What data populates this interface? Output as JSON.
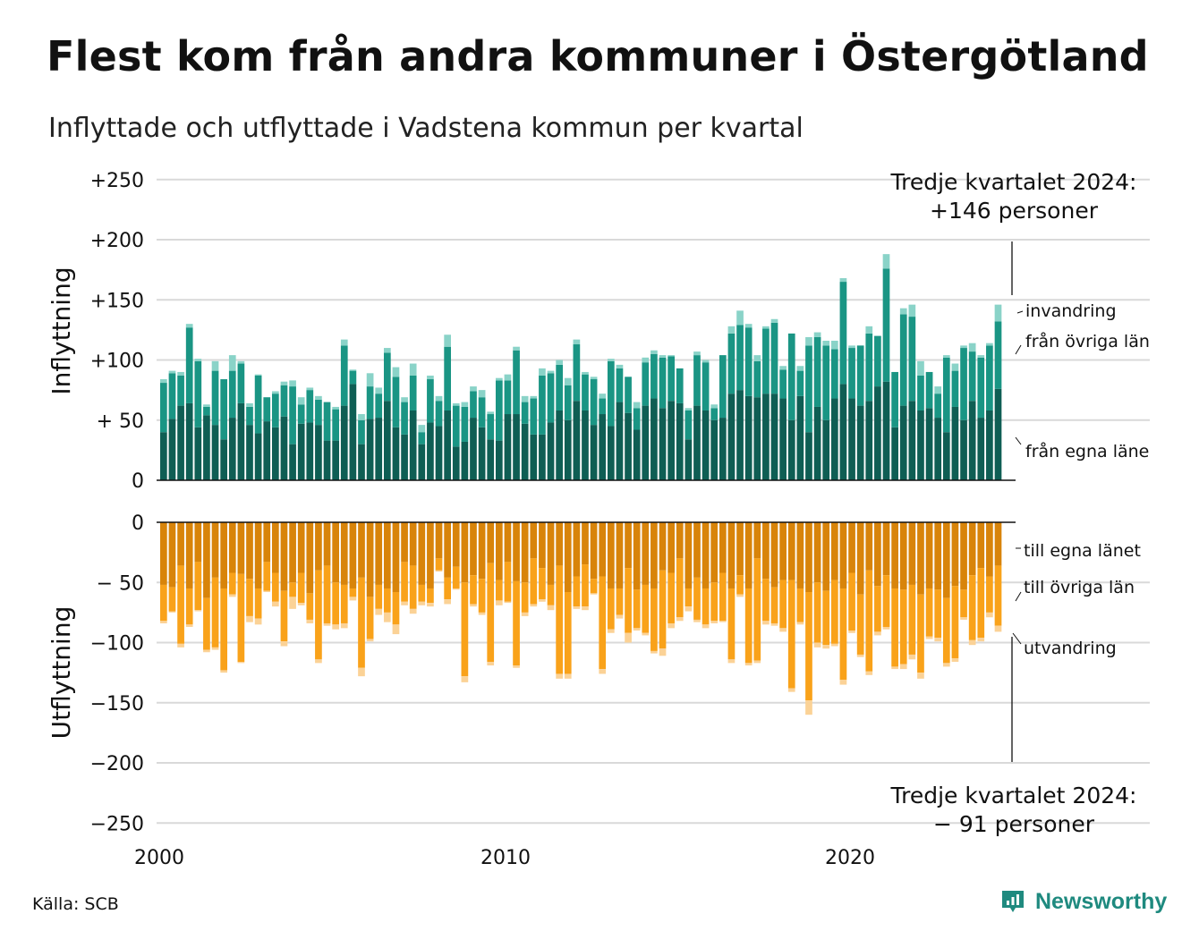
{
  "title": "Flest kom från andra kommuner i Östergötland",
  "subtitle": "Inflyttade och utflyttade i Vadstena kommun per kvartal",
  "source": "Källa: SCB",
  "brand": "Newsworthy",
  "colors": {
    "in_own": "#0f5e54",
    "in_other": "#1a9584",
    "in_immig": "#8ad3c8",
    "out_own": "#d8840a",
    "out_other": "#f9a21a",
    "out_emig": "#fbd296",
    "grid": "#d9d9d9",
    "brand": "#1f8a7f"
  },
  "chart_data": {
    "type": "bar",
    "stacked": true,
    "x_start_year": 2000,
    "xticks": [
      "2000",
      "2010",
      "2020"
    ],
    "inflow": {
      "ylabel": "Inflyttning",
      "yticks": [
        "+250",
        "+200",
        "+150",
        "+100",
        "+ 50",
        "0"
      ],
      "ylim": [
        0,
        250
      ],
      "series_labels": [
        "invandring",
        "från övriga län",
        "från egna läne"
      ],
      "annotation": [
        "Tredje kvartalet 2024:",
        "+146 personer"
      ],
      "own": [
        40,
        51,
        62,
        64,
        44,
        54,
        46,
        34,
        52,
        64,
        46,
        39,
        49,
        44,
        53,
        30,
        47,
        48,
        46,
        33,
        33,
        62,
        80,
        30,
        51,
        52,
        66,
        44,
        38,
        58,
        30,
        48,
        45,
        58,
        28,
        32,
        52,
        44,
        34,
        33,
        55,
        55,
        47,
        38,
        38,
        48,
        58,
        50,
        66,
        58,
        46,
        55,
        45,
        65,
        56,
        42,
        62,
        68,
        60,
        66,
        64,
        34,
        62,
        58,
        50,
        52,
        72,
        75,
        70,
        69,
        72,
        72,
        68,
        50,
        70,
        40,
        61,
        50,
        68,
        80,
        68,
        62,
        66,
        78,
        82,
        44,
        62,
        66,
        58,
        60,
        52,
        40,
        61,
        50,
        66,
        52,
        58,
        76
      ],
      "other": [
        41,
        38,
        25,
        63,
        55,
        7,
        45,
        50,
        39,
        33,
        15,
        48,
        20,
        28,
        26,
        48,
        16,
        27,
        21,
        32,
        26,
        50,
        11,
        20,
        27,
        20,
        40,
        42,
        27,
        29,
        10,
        36,
        21,
        53,
        34,
        29,
        22,
        25,
        21,
        50,
        28,
        53,
        18,
        30,
        49,
        41,
        38,
        29,
        47,
        30,
        38,
        13,
        54,
        28,
        30,
        18,
        36,
        37,
        42,
        37,
        29,
        24,
        42,
        40,
        10,
        52,
        50,
        54,
        57,
        30,
        54,
        59,
        24,
        72,
        21,
        72,
        58,
        62,
        41,
        85,
        42,
        50,
        56,
        42,
        94,
        46,
        76,
        70,
        29,
        30,
        20,
        62,
        30,
        60,
        41,
        50,
        54,
        56
      ],
      "immig": [
        3,
        2,
        3,
        3,
        2,
        2,
        8,
        0,
        13,
        2,
        3,
        1,
        0,
        2,
        3,
        5,
        6,
        2,
        3,
        0,
        2,
        5,
        1,
        5,
        11,
        5,
        4,
        8,
        4,
        10,
        6,
        3,
        4,
        10,
        2,
        4,
        4,
        6,
        2,
        2,
        5,
        3,
        5,
        2,
        6,
        2,
        4,
        6,
        4,
        2,
        2,
        4,
        2,
        3,
        0,
        5,
        4,
        3,
        2,
        1,
        0,
        2,
        3,
        2,
        3,
        0,
        6,
        12,
        3,
        5,
        2,
        3,
        3,
        0,
        4,
        7,
        4,
        4,
        7,
        3,
        2,
        0,
        6,
        0,
        12,
        0,
        5,
        10,
        12,
        0,
        6,
        2,
        6,
        2,
        7,
        2,
        2,
        14
      ]
    },
    "outflow": {
      "ylabel": "Utflyttning",
      "yticks": [
        "0",
        "− 50",
        "−100",
        "−150",
        "−200",
        "−250"
      ],
      "ylim": [
        -250,
        0
      ],
      "series_labels": [
        "till egna länet",
        "till övriga län",
        "utvandring"
      ],
      "annotation": [
        "Tredje kvartalet 2024:",
        "− 91 personer"
      ],
      "own": [
        -52,
        -54,
        -36,
        -55,
        -33,
        -63,
        -46,
        -55,
        -42,
        -43,
        -47,
        -55,
        -33,
        -42,
        -57,
        -50,
        -42,
        -59,
        -40,
        -36,
        -50,
        -52,
        -55,
        -46,
        -62,
        -52,
        -55,
        -58,
        -33,
        -36,
        -52,
        -55,
        -30,
        -46,
        -37,
        -50,
        -44,
        -47,
        -34,
        -48,
        -33,
        -49,
        -50,
        -30,
        -38,
        -52,
        -36,
        -58,
        -45,
        -35,
        -47,
        -45,
        -55,
        -55,
        -38,
        -56,
        -52,
        -55,
        -40,
        -42,
        -30,
        -55,
        -46,
        -55,
        -50,
        -42,
        -55,
        -44,
        -55,
        -30,
        -47,
        -54,
        -48,
        -48,
        -55,
        -58,
        -50,
        -57,
        -48,
        -55,
        -42,
        -60,
        -40,
        -53,
        -44,
        -55,
        -56,
        -52,
        -60,
        -55,
        -56,
        -63,
        -53,
        -56,
        -44,
        -38,
        -45,
        -36
      ],
      "other": [
        -30,
        -20,
        -65,
        -30,
        -40,
        -43,
        -58,
        -68,
        -18,
        -73,
        -31,
        -25,
        -24,
        -24,
        -42,
        -12,
        -25,
        -22,
        -74,
        -48,
        -35,
        -32,
        -7,
        -75,
        -35,
        -20,
        -20,
        -27,
        -33,
        -36,
        -14,
        -12,
        -10,
        -18,
        -18,
        -78,
        -24,
        -28,
        -82,
        -17,
        -33,
        -70,
        -25,
        -38,
        -26,
        -17,
        -90,
        -68,
        -25,
        -35,
        -12,
        -77,
        -34,
        -22,
        -54,
        -32,
        -40,
        -52,
        -65,
        -42,
        -49,
        -15,
        -35,
        -30,
        -32,
        -40,
        -59,
        -16,
        -62,
        -85,
        -35,
        -30,
        -40,
        -90,
        -28,
        -90,
        -50,
        -45,
        -53,
        -76,
        -48,
        -50,
        -84,
        -38,
        -43,
        -65,
        -62,
        -58,
        -65,
        -40,
        -40,
        -54,
        -60,
        -23,
        -54,
        -58,
        -30,
        -50
      ],
      "immig": [
        -2,
        -1,
        -3,
        -2,
        -1,
        -2,
        -2,
        -2,
        -2,
        -1,
        -5,
        -5,
        -1,
        -4,
        -4,
        -10,
        -2,
        -3,
        -3,
        -2,
        -4,
        -4,
        -3,
        -7,
        -2,
        -5,
        -8,
        -8,
        -3,
        -4,
        -3,
        -3,
        -1,
        -4,
        -1,
        -5,
        -2,
        -2,
        -3,
        -4,
        -1,
        -2,
        -3,
        -2,
        -2,
        -4,
        -4,
        -4,
        -2,
        -3,
        -1,
        -4,
        -3,
        -3,
        -8,
        -2,
        -2,
        -2,
        -6,
        -4,
        -3,
        -4,
        -2,
        -3,
        -2,
        -1,
        -3,
        -2,
        -2,
        -2,
        -3,
        -2,
        -3,
        -3,
        -2,
        -12,
        -4,
        -3,
        -2,
        -4,
        -2,
        -2,
        -3,
        -3,
        -2,
        -2,
        -4,
        -4,
        -5,
        -2,
        -3,
        -3,
        -3,
        -2,
        -4,
        -3,
        -4,
        -5
      ]
    }
  }
}
